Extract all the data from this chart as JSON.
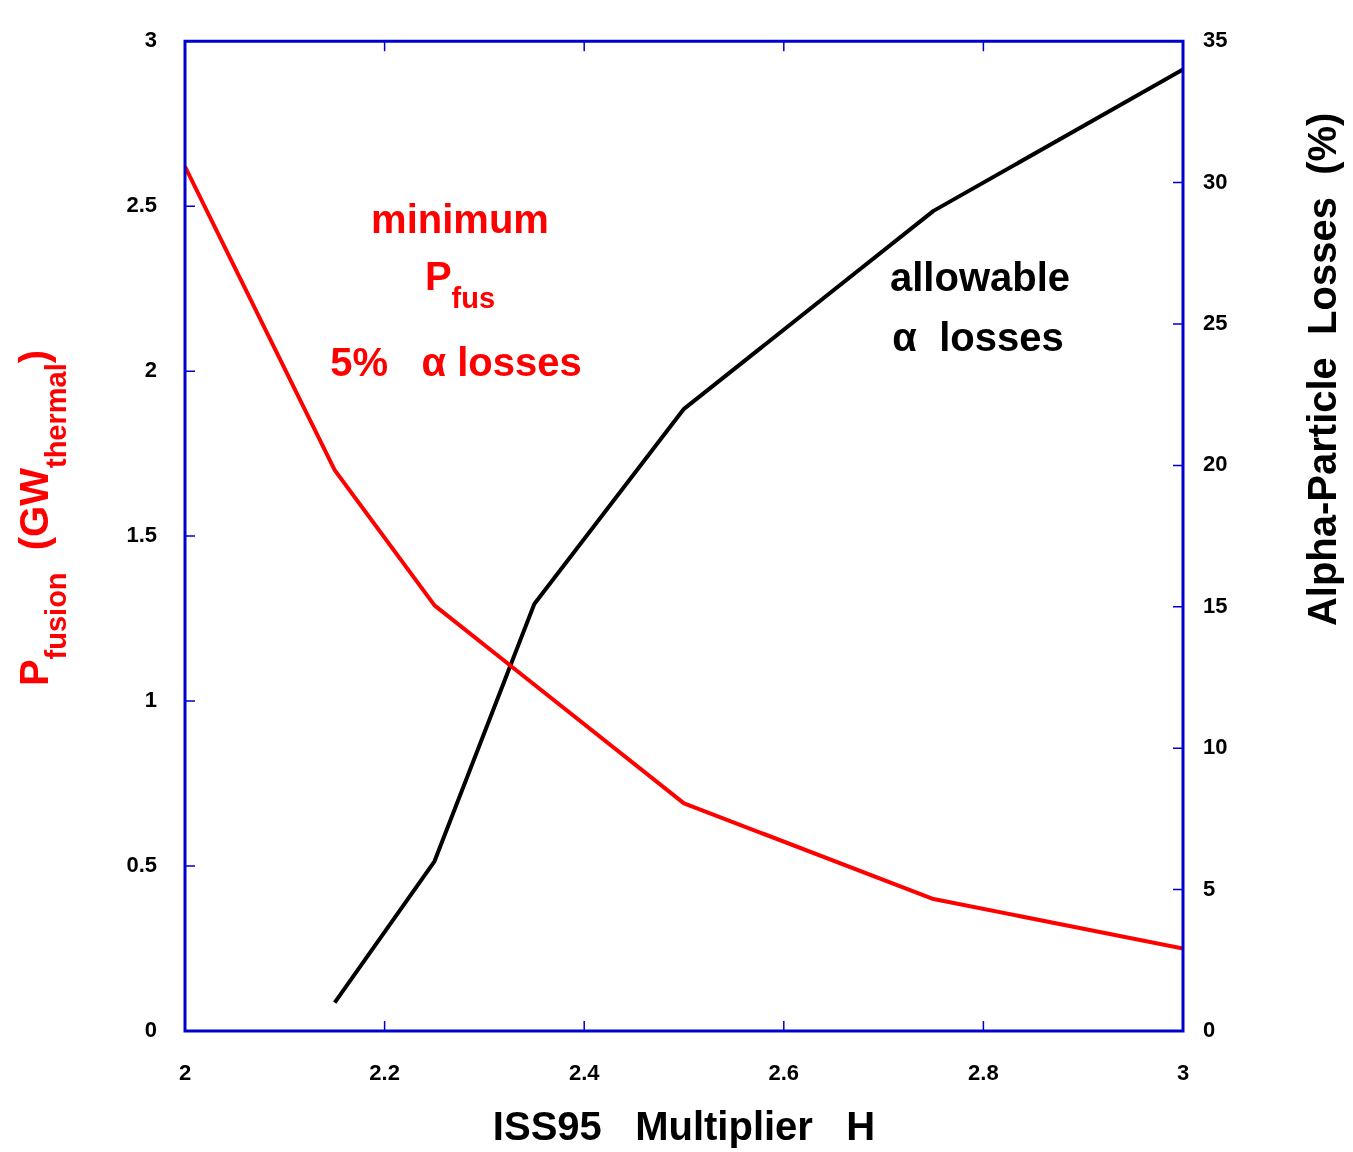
{
  "chart_data": {
    "type": "line",
    "xlabel": "ISS95   Multiplier   H",
    "ylabel": "P$_{fusion}$  (GW$_{thermal}$)",
    "y2label": "Alpha-Particle  Losses  (%)",
    "annotations": [
      "minimum",
      "P$_{fus}$",
      "5%   α losses",
      "allowable",
      "α  losses"
    ],
    "xlim": [
      2,
      3
    ],
    "xticks": [
      2,
      2.2,
      2.4,
      2.6,
      2.8,
      3
    ],
    "ylim": [
      0,
      3
    ],
    "yticks": [
      0,
      0.5,
      1,
      1.5,
      2,
      2.5,
      3
    ],
    "y2lim": [
      0,
      35
    ],
    "y2ticks": [
      0,
      5,
      10,
      15,
      20,
      25,
      30,
      35
    ],
    "grid": false,
    "legend": false,
    "marker": "none",
    "line_style": "solid",
    "series": [
      {
        "color": "#ff0000",
        "x": [
          2,
          2.15,
          2.25,
          2.5,
          2.75,
          3
        ],
        "values": [
          2.62,
          1.7,
          1.29,
          0.69,
          0.4,
          0.25
        ]
      },
      {
        "color": "#000000",
        "axis": "y2",
        "x": [
          2.15,
          2.25,
          2.35,
          2.5,
          2.75,
          3
        ],
        "values": [
          1.0,
          6.0,
          15.1,
          22.0,
          29.0,
          34.0
        ]
      }
    ]
  }
}
